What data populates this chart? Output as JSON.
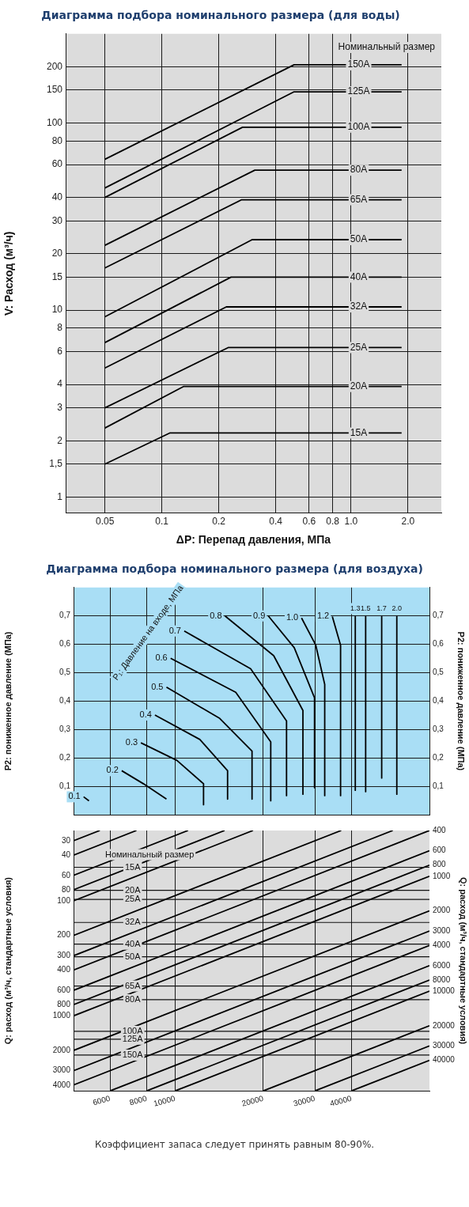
{
  "chart_data": [
    {
      "type": "line",
      "title": "Диаграмма подбора номинального размера (для воды)",
      "xlabel": "ΔP: Перепад давления, МПа",
      "ylabel": "V: Расход (м³/ч)",
      "legend_title": "Номинальный размер",
      "log": "xy",
      "grid": true,
      "xlim": [
        0.031,
        3
      ],
      "xticks": [
        0.05,
        0.1,
        0.2,
        0.4,
        0.6,
        0.8,
        {
          "value": 1,
          "label": "1.0"
        },
        {
          "value": 2,
          "label": "2.0"
        }
      ],
      "ylim": [
        0.82,
        300
      ],
      "yticks": [
        1,
        {
          "value": 1.5,
          "label": "1,5"
        },
        2,
        3,
        4,
        6,
        8,
        10,
        15,
        20,
        30,
        40,
        60,
        80,
        100,
        150,
        200
      ],
      "series": [
        {
          "name": "15A",
          "color": "#000000",
          "x": [
            0.05,
            0.11,
            1.85
          ],
          "values": [
            1.5,
            2.2,
            2.2
          ]
        },
        {
          "name": "20A",
          "color": "#000000",
          "x": [
            0.05,
            0.13,
            1.85
          ],
          "values": [
            2.34,
            3.9,
            3.9
          ]
        },
        {
          "name": "25A",
          "color": "#000000",
          "x": [
            0.05,
            0.224,
            1.85
          ],
          "values": [
            3,
            6.3,
            6.3
          ]
        },
        {
          "name": "32A",
          "color": "#000000",
          "x": [
            0.05,
            0.219,
            1.85
          ],
          "values": [
            4.9,
            10.4,
            10.4
          ]
        },
        {
          "name": "40A",
          "color": "#000000",
          "x": [
            0.05,
            0.232,
            1.85
          ],
          "values": [
            6.7,
            15,
            15
          ]
        },
        {
          "name": "50A",
          "color": "#000000",
          "x": [
            0.05,
            0.3,
            1.85
          ],
          "values": [
            9.2,
            23.8,
            23.8
          ]
        },
        {
          "name": "65A",
          "color": "#000000",
          "x": [
            0.05,
            0.264,
            1.85
          ],
          "values": [
            16.8,
            38.9,
            38.9
          ]
        },
        {
          "name": "80A",
          "color": "#000000",
          "x": [
            0.05,
            0.31,
            1.85
          ],
          "values": [
            22.2,
            56,
            56
          ]
        },
        {
          "name": "100A",
          "color": "#000000",
          "x": [
            0.05,
            0.267,
            1.85
          ],
          "values": [
            40,
            95,
            95
          ]
        },
        {
          "name": "125A",
          "color": "#000000",
          "x": [
            0.05,
            0.5,
            1.85
          ],
          "values": [
            45,
            147,
            147
          ]
        },
        {
          "name": "150A",
          "color": "#000000",
          "x": [
            0.05,
            0.5,
            1.85
          ],
          "values": [
            64,
            205,
            205
          ]
        }
      ]
    },
    {
      "type": "line",
      "title": "Диаграмма подбора номинального размера (для воздуха)",
      "ylabel": "P2: пониженное давление (МПа)",
      "y2label": "P2: пониженное давление (МПа)",
      "annotations": [
        "P₁: Давление на входе, МПа"
      ],
      "log": "x",
      "grid": true,
      "tick_labels": "y",
      "xlim": [
        4500,
        73800
      ],
      "xticks": [
        6000,
        8000,
        10000,
        20000,
        30000,
        40000
      ],
      "ylim": [
        0,
        0.8
      ],
      "yticks": [
        {
          "value": 0.1,
          "label": "0,1"
        },
        {
          "value": 0.2,
          "label": "0,2"
        },
        {
          "value": 0.3,
          "label": "0,3"
        },
        {
          "value": 0.4,
          "label": "0,4"
        },
        {
          "value": 0.5,
          "label": "0,5"
        },
        {
          "value": 0.6,
          "label": "0,6"
        },
        {
          "value": 0.7,
          "label": "0,7"
        }
      ],
      "y2lim": [
        0,
        0.8
      ],
      "y2ticks": [
        {
          "value": 0.1,
          "label": "0,1"
        },
        {
          "value": 0.2,
          "label": "0,2"
        },
        {
          "value": 0.3,
          "label": "0,3"
        },
        {
          "value": 0.4,
          "label": "0,4"
        },
        {
          "value": 0.5,
          "label": "0,5"
        },
        {
          "value": 0.6,
          "label": "0,6"
        },
        {
          "value": 0.7,
          "label": "0,7"
        }
      ],
      "series": [
        {
          "name": "0.1",
          "color": "#000000",
          "x": [
            4870,
            5080
          ],
          "values": [
            0.063,
            0.049
          ]
        },
        {
          "name": "0.2",
          "color": "#000000",
          "x": [
            6570,
            7790,
            9340
          ],
          "values": [
            0.155,
            0.109,
            0.055
          ]
        },
        {
          "name": "0.3",
          "color": "#000000",
          "x": [
            7640,
            10140,
            12500,
            12500
          ],
          "values": [
            0.253,
            0.191,
            0.109,
            0.035
          ]
        },
        {
          "name": "0.4",
          "color": "#000000",
          "x": [
            8530,
            12140,
            15100,
            15100
          ],
          "values": [
            0.351,
            0.265,
            0.155,
            0.055
          ]
        },
        {
          "name": "0.5",
          "color": "#000000",
          "x": [
            9340,
            14200,
            18300,
            18300
          ],
          "values": [
            0.449,
            0.339,
            0.224,
            0.055
          ]
        },
        {
          "name": "0.6",
          "color": "#000000",
          "x": [
            9650,
            16100,
            21200,
            21200
          ],
          "values": [
            0.551,
            0.431,
            0.256,
            0.049
          ]
        },
        {
          "name": "0.7",
          "color": "#000000",
          "x": [
            10740,
            18100,
            24000,
            24000
          ],
          "values": [
            0.647,
            0.514,
            0.33,
            0.067
          ]
        },
        {
          "name": "0.8",
          "color": "#000000",
          "x": [
            14800,
            21700,
            27300,
            27300
          ],
          "values": [
            0.7,
            0.56,
            0.367,
            0.072
          ]
        },
        {
          "name": "0.9",
          "color": "#000000",
          "x": [
            20800,
            25500,
            29900,
            29900
          ],
          "values": [
            0.7,
            0.588,
            0.412,
            0.095
          ]
        },
        {
          "name": "1.0",
          "color": "#000000",
          "x": [
            27000,
            30200,
            32400,
            32400
          ],
          "values": [
            0.693,
            0.597,
            0.459,
            0.067
          ]
        },
        {
          "name": "1.2",
          "color": "#000000",
          "x": [
            34400,
            36700,
            36700
          ],
          "values": [
            0.698,
            0.597,
            0.067
          ]
        },
        {
          "name": "1.3",
          "color": "#000000",
          "x": [
            41200,
            41200
          ],
          "values": [
            0.698,
            0.086
          ]
        },
        {
          "name": "1.5",
          "color": "#000000",
          "x": [
            44700,
            44700
          ],
          "values": [
            0.698,
            0.081
          ]
        },
        {
          "name": "1.7",
          "color": "#000000",
          "x": [
            50700,
            50700
          ],
          "values": [
            0.698,
            0.129
          ]
        },
        {
          "name": "2.0",
          "color": "#000000",
          "x": [
            57100,
            57100
          ],
          "values": [
            0.698,
            0.072
          ]
        }
      ]
    },
    {
      "type": "line",
      "ylabel": "Q: расход (м³/ч, стандартные условия)",
      "y2label": "Q: расход (м³/ч, стандартные условия)",
      "legend_title": "Номинальный размер",
      "annotations": [
        "Коэффициент запаса следует принять равным 80-90%.",
        "400",
        "600",
        "800",
        "1000",
        "2000",
        "3000",
        "4000",
        "6000",
        "8000",
        "10000",
        "20000",
        "30000",
        "40000"
      ],
      "log": "xy",
      "grid": "x",
      "xlim": [
        4500,
        73800
      ],
      "xticks": [
        6000,
        8000,
        10000,
        20000,
        30000,
        40000
      ],
      "ylim": [
        4500,
        24.4
      ],
      "yticks": [
        30,
        40,
        60,
        80,
        100,
        200,
        300,
        400,
        600,
        800,
        1000,
        2000,
        3000,
        4000
      ],
      "ref_lines": [
        {
          "axis": "y",
          "value": 51,
          "label": "15A"
        },
        {
          "axis": "y",
          "value": 81,
          "label": "20A"
        },
        {
          "axis": "y",
          "value": 97,
          "label": "25A"
        },
        {
          "axis": "y",
          "value": 154,
          "label": "32A"
        },
        {
          "axis": "y",
          "value": 238,
          "label": "40A"
        },
        {
          "axis": "y",
          "value": 306,
          "label": "50A"
        },
        {
          "axis": "y",
          "value": 550,
          "label": "65A"
        },
        {
          "axis": "y",
          "value": 724,
          "label": "80A"
        },
        {
          "axis": "y",
          "value": 1365,
          "label": "100A"
        },
        {
          "axis": "y",
          "value": 1597,
          "label": "125A"
        },
        {
          "axis": "y",
          "value": 2196,
          "label": "150A"
        }
      ],
      "series": [
        {
          "color": "#000000",
          "x": [
            4500,
            5532
          ],
          "values": [
            30,
            24.4
          ]
        },
        {
          "color": "#000000",
          "x": [
            4500,
            7376
          ],
          "values": [
            40,
            24.4
          ]
        },
        {
          "color": "#000000",
          "x": [
            4500,
            11064
          ],
          "values": [
            60,
            24.4
          ]
        },
        {
          "color": "#000000",
          "x": [
            4500,
            14752
          ],
          "values": [
            80,
            24.4
          ]
        },
        {
          "color": "#000000",
          "x": [
            4500,
            18440
          ],
          "values": [
            100,
            24.4
          ]
        },
        {
          "color": "#000000",
          "x": [
            4500,
            36880
          ],
          "values": [
            200,
            24.4
          ]
        },
        {
          "color": "#000000",
          "x": [
            4500,
            55320
          ],
          "values": [
            300,
            24.4
          ]
        },
        {
          "color": "#000000",
          "x": [
            4500,
            73800
          ],
          "values": [
            400,
            24.4
          ]
        },
        {
          "color": "#000000",
          "x": [
            4500,
            73800
          ],
          "values": [
            600,
            36.6
          ]
        },
        {
          "color": "#000000",
          "x": [
            4500,
            73800
          ],
          "values": [
            800,
            48.8
          ]
        },
        {
          "color": "#000000",
          "x": [
            4500,
            73800
          ],
          "values": [
            1000,
            61
          ]
        },
        {
          "color": "#000000",
          "x": [
            4500,
            73800
          ],
          "values": [
            2000,
            122
          ]
        },
        {
          "color": "#000000",
          "x": [
            4500,
            73800
          ],
          "values": [
            3000,
            183
          ]
        },
        {
          "color": "#000000",
          "x": [
            4500,
            73800
          ],
          "values": [
            4000,
            244
          ]
        },
        {
          "color": "#000000",
          "x": [
            6000,
            73800
          ],
          "values": [
            4500,
            366
          ]
        },
        {
          "color": "#000000",
          "x": [
            8000,
            73800
          ],
          "values": [
            4500,
            488
          ]
        },
        {
          "color": "#000000",
          "x": [
            10000,
            73800
          ],
          "values": [
            4500,
            610
          ]
        },
        {
          "color": "#000000",
          "x": [
            20000,
            73800
          ],
          "values": [
            4500,
            1220
          ]
        },
        {
          "color": "#000000",
          "x": [
            30000,
            73800
          ],
          "values": [
            4500,
            1829
          ]
        },
        {
          "color": "#000000",
          "x": [
            40000,
            73800
          ],
          "values": [
            4500,
            2439
          ]
        }
      ]
    }
  ]
}
